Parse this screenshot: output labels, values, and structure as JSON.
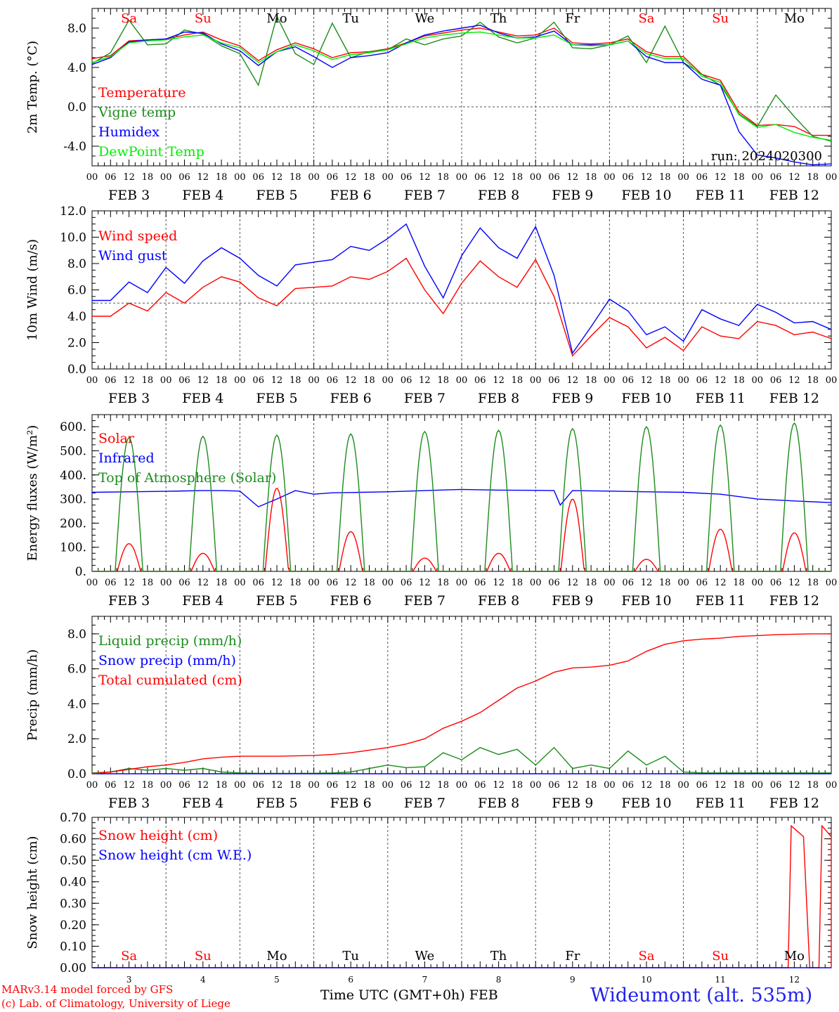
{
  "chart_data": [
    {
      "type": "line",
      "ylabel": "2m Temp. (°C)",
      "ylim": [
        -6,
        10
      ],
      "yticks": [
        "-4.0",
        "0.0",
        "4.0",
        "8.0"
      ],
      "ytick_values": [
        -4,
        0,
        4,
        8
      ],
      "reference_line": 0,
      "run_label": "run: 2024020300",
      "x_hours": [
        0,
        6,
        12,
        18,
        24,
        30,
        36,
        42,
        48,
        54,
        60,
        66,
        72,
        78,
        84,
        90,
        96,
        102,
        108,
        114,
        120,
        126,
        132,
        138,
        144,
        150,
        156,
        162,
        168,
        174,
        180,
        186,
        192,
        198,
        204,
        210,
        216,
        222,
        228,
        234,
        240
      ],
      "series": [
        {
          "name": "Temperature",
          "color": "#ff0000",
          "values": [
            4.9,
            5.2,
            6.7,
            6.8,
            6.9,
            7.3,
            7.6,
            6.8,
            6.2,
            4.7,
            5.8,
            6.5,
            5.9,
            5.0,
            5.5,
            5.6,
            5.9,
            6.5,
            7.2,
            7.5,
            7.8,
            8.0,
            7.6,
            7.2,
            7.3,
            8.0,
            6.5,
            6.4,
            6.5,
            6.9,
            5.6,
            5.1,
            5.1,
            3.3,
            2.7,
            -0.5,
            -1.9,
            -1.8,
            -2.0,
            -2.9,
            -2.9
          ]
        },
        {
          "name": "Vigne temp",
          "color": "#1c8c1c",
          "values": [
            4.4,
            5.5,
            8.8,
            6.3,
            6.4,
            7.8,
            7.4,
            6.2,
            5.4,
            2.2,
            9.2,
            5.4,
            4.3,
            8.5,
            5.0,
            5.6,
            5.8,
            6.9,
            6.3,
            6.9,
            7.2,
            8.6,
            7.1,
            6.5,
            7.0,
            8.6,
            6.0,
            5.9,
            6.3,
            7.2,
            4.5,
            8.2,
            4.5,
            3.3,
            2.2,
            -0.7,
            -2.0,
            1.2,
            -1.0,
            -3.0,
            -3.5
          ]
        },
        {
          "name": "Humidex",
          "color": "#0000ff",
          "values": [
            4.3,
            5.0,
            6.6,
            6.8,
            6.9,
            7.6,
            7.5,
            6.4,
            5.7,
            4.2,
            5.6,
            6.1,
            5.1,
            4.0,
            5.0,
            5.2,
            5.5,
            6.5,
            7.3,
            7.7,
            8.0,
            8.3,
            7.5,
            7.0,
            7.1,
            7.7,
            6.3,
            6.3,
            6.3,
            6.7,
            5.1,
            4.5,
            4.5,
            2.8,
            2.2,
            -2.5,
            -4.9,
            -5.2,
            -5.6,
            -5.9,
            -5.8
          ]
        },
        {
          "name": "DewPoint Temp",
          "color": "#00ee00",
          "values": [
            4.5,
            5.1,
            6.5,
            6.7,
            6.8,
            7.1,
            7.3,
            6.5,
            6.0,
            4.5,
            5.6,
            6.3,
            5.7,
            4.8,
            5.3,
            5.5,
            5.8,
            6.4,
            7.0,
            7.3,
            7.5,
            7.6,
            7.3,
            7.0,
            7.0,
            7.3,
            6.3,
            6.2,
            6.3,
            6.7,
            5.4,
            4.9,
            4.9,
            3.1,
            2.5,
            -0.8,
            -2.1,
            -1.8,
            -2.6,
            -3.1,
            -3.4
          ]
        }
      ]
    },
    {
      "type": "line",
      "ylabel": "10m Wind (m/s)",
      "ylim": [
        0,
        12
      ],
      "yticks": [
        "0.0",
        "2.0",
        "4.0",
        "6.0",
        "8.0",
        "10.0",
        "12.0"
      ],
      "ytick_values": [
        0,
        2,
        4,
        6,
        8,
        10,
        12
      ],
      "reference_line": 5,
      "x_hours": [
        0,
        6,
        12,
        18,
        24,
        30,
        36,
        42,
        48,
        54,
        60,
        66,
        72,
        78,
        84,
        90,
        96,
        102,
        108,
        114,
        120,
        126,
        132,
        138,
        144,
        150,
        156,
        162,
        168,
        174,
        180,
        186,
        192,
        198,
        204,
        210,
        216,
        222,
        228,
        234,
        240
      ],
      "series": [
        {
          "name": "Wind speed",
          "color": "#ff0000",
          "values": [
            4.0,
            4.0,
            5.0,
            4.4,
            5.8,
            5.0,
            6.2,
            7.0,
            6.6,
            5.4,
            4.8,
            6.1,
            6.2,
            6.3,
            7.0,
            6.8,
            7.4,
            8.4,
            6.0,
            4.2,
            6.5,
            8.2,
            7.0,
            6.2,
            8.3,
            5.5,
            1.0,
            2.5,
            3.9,
            3.2,
            1.6,
            2.4,
            1.4,
            3.2,
            2.5,
            2.3,
            3.6,
            3.3,
            2.6,
            2.8,
            2.3
          ]
        },
        {
          "name": "Wind gust",
          "color": "#0000ff",
          "values": [
            5.2,
            5.2,
            6.6,
            5.8,
            7.7,
            6.5,
            8.2,
            9.2,
            8.4,
            7.1,
            6.3,
            7.9,
            8.1,
            8.3,
            9.3,
            9.0,
            9.9,
            11.0,
            7.8,
            5.4,
            8.6,
            10.7,
            9.2,
            8.4,
            10.8,
            7.1,
            1.2,
            3.2,
            5.3,
            4.4,
            2.6,
            3.2,
            2.1,
            4.5,
            3.8,
            3.3,
            4.9,
            4.3,
            3.5,
            3.6,
            3.0
          ]
        }
      ]
    },
    {
      "type": "line",
      "ylabel": "Energy fluxes (W/m²)",
      "ylim": [
        0,
        650
      ],
      "yticks": [
        "0.",
        "100.",
        "200.",
        "300.",
        "400.",
        "500.",
        "600."
      ],
      "ytick_values": [
        0,
        100,
        200,
        300,
        400,
        500,
        600
      ],
      "series": [
        {
          "name": "Solar",
          "color": "#ff0000",
          "peak_hour": 12,
          "daily_peaks": [
            115,
            75,
            345,
            165,
            55,
            75,
            300,
            50,
            175,
            160
          ]
        },
        {
          "name": "Infrared",
          "color": "#0000ff",
          "x_hours": [
            0,
            12,
            24,
            36,
            42,
            48,
            54,
            60,
            66,
            72,
            78,
            84,
            96,
            108,
            120,
            132,
            144,
            150,
            152,
            156,
            168,
            180,
            192,
            204,
            216,
            228,
            240
          ],
          "values": [
            328,
            330,
            332,
            335,
            335,
            333,
            268,
            300,
            335,
            320,
            326,
            327,
            330,
            335,
            340,
            337,
            336,
            335,
            275,
            335,
            333,
            330,
            328,
            320,
            300,
            292,
            285
          ]
        },
        {
          "name": "Top of Atmosphere (Solar)",
          "color": "#1c8c1c",
          "peak_hour": 12,
          "daily_peaks": [
            555,
            560,
            565,
            570,
            580,
            585,
            592,
            600,
            607,
            615
          ]
        }
      ]
    },
    {
      "type": "line",
      "ylabel": "Precip (mm/h)",
      "ylim": [
        0,
        9
      ],
      "yticks": [
        "0.0",
        "2.0",
        "4.0",
        "6.0",
        "8.0"
      ],
      "ytick_values": [
        0,
        2,
        4,
        6,
        8
      ],
      "x_hours": [
        0,
        6,
        12,
        18,
        24,
        30,
        36,
        42,
        48,
        54,
        60,
        66,
        72,
        78,
        84,
        90,
        96,
        102,
        108,
        114,
        120,
        126,
        132,
        138,
        144,
        150,
        156,
        162,
        168,
        174,
        180,
        186,
        192,
        198,
        204,
        210,
        216,
        222,
        228,
        234,
        240
      ],
      "series": [
        {
          "name": "Liquid precip (mm/h)",
          "color": "#1c8c1c",
          "values": [
            0.05,
            0.1,
            0.3,
            0.2,
            0.3,
            0.2,
            0.3,
            0.1,
            0.05,
            0.02,
            0.02,
            0.02,
            0.03,
            0.05,
            0.1,
            0.3,
            0.5,
            0.35,
            0.4,
            1.2,
            0.8,
            1.5,
            1.1,
            1.4,
            0.5,
            1.5,
            0.3,
            0.5,
            0.3,
            1.3,
            0.5,
            1.0,
            0.1,
            0.05,
            0.05,
            0.05,
            0.05,
            0.05,
            0.05,
            0.05,
            0.05
          ]
        },
        {
          "name": "Snow precip (mm/h)",
          "color": "#0000ff",
          "values": [
            0,
            0,
            0,
            0,
            0,
            0,
            0,
            0,
            0,
            0,
            0,
            0,
            0,
            0,
            0,
            0,
            0,
            0,
            0,
            0,
            0,
            0,
            0,
            0,
            0,
            0,
            0,
            0,
            0,
            0,
            0,
            0,
            0,
            0,
            0,
            0,
            0,
            0,
            0,
            0,
            0
          ]
        },
        {
          "name": "Total cumulated (cm)",
          "color": "#ff0000",
          "values": [
            0.0,
            0.1,
            0.25,
            0.4,
            0.5,
            0.65,
            0.85,
            0.95,
            1.0,
            1.0,
            1.0,
            1.02,
            1.05,
            1.1,
            1.2,
            1.35,
            1.5,
            1.7,
            2.0,
            2.6,
            3.0,
            3.5,
            4.2,
            4.9,
            5.3,
            5.8,
            6.05,
            6.1,
            6.2,
            6.45,
            7.0,
            7.4,
            7.6,
            7.7,
            7.75,
            7.85,
            7.9,
            7.95,
            7.98,
            8.0,
            8.0
          ]
        }
      ]
    },
    {
      "type": "line",
      "ylabel": "Snow height (cm)",
      "ylim": [
        0,
        0.7
      ],
      "yticks": [
        "0.00",
        "0.10",
        "0.20",
        "0.30",
        "0.40",
        "0.50",
        "0.60",
        "0.70"
      ],
      "ytick_values": [
        0,
        0.1,
        0.2,
        0.3,
        0.4,
        0.5,
        0.6,
        0.7
      ],
      "series": [
        {
          "name": "Snow height (cm)",
          "color": "#ff0000",
          "x_hours": [
            0,
            226,
            227,
            231,
            233,
            236,
            237,
            242,
            244,
            245
          ],
          "values": [
            0,
            0,
            0.66,
            0.61,
            0,
            0,
            0.66,
            0.61,
            0,
            0
          ]
        },
        {
          "name": "Snow height (cm W.E.)",
          "color": "#0000ff",
          "x_hours": [
            0,
            245
          ],
          "values": [
            0,
            0
          ]
        }
      ]
    }
  ],
  "x_axis": {
    "hour_tick_labels": [
      "00",
      "06",
      "12",
      "18"
    ],
    "date_labels": [
      "FEB  3",
      "FEB  4",
      "FEB  5",
      "FEB  6",
      "FEB  7",
      "FEB  8",
      "FEB  9",
      "FEB 10",
      "FEB 11",
      "FEB 12"
    ],
    "weekday_labels": [
      "Sa",
      "Su",
      "Mo",
      "Tu",
      "We",
      "Th",
      "Fr",
      "Sa",
      "Su",
      "Mo"
    ],
    "weekday_colors": [
      "#ff0000",
      "#ff0000",
      "#000000",
      "#000000",
      "#000000",
      "#000000",
      "#000000",
      "#ff0000",
      "#ff0000",
      "#000000"
    ],
    "bottom_day_numbers": [
      "3",
      "4",
      "5",
      "6",
      "7",
      "8",
      "9",
      "10",
      "11",
      "12"
    ],
    "bottom_title": "Time UTC (GMT+0h) FEB"
  },
  "footer": {
    "line1": "MARv3.14 model forced by GFS",
    "line2": "(c) Lab. of Climatology, University of Liege",
    "station": "Wideumont (alt. 535m)"
  }
}
